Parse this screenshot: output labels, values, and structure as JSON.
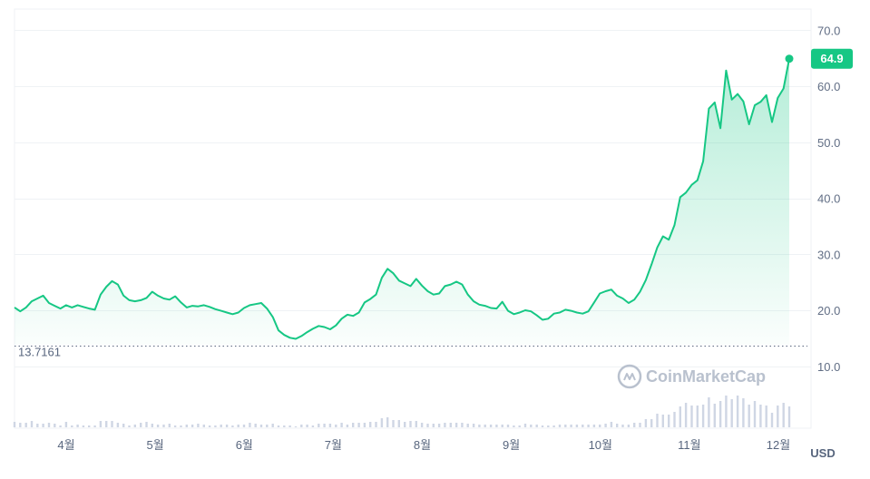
{
  "chart_data": {
    "type": "area",
    "title": "",
    "xlabel": "",
    "ylabel": "",
    "unit": "USD",
    "ylim": [
      0,
      70
    ],
    "y_ticks": [
      10.0,
      20.0,
      30.0,
      40.0,
      50.0,
      60.0,
      70.0
    ],
    "y_tick_labels": [
      "10.0",
      "20.0",
      "30.0",
      "40.0",
      "50.0",
      "60.0",
      "70.0"
    ],
    "x_ticks": [
      "4월",
      "5월",
      "6월",
      "7월",
      "8월",
      "9월",
      "10월",
      "11월",
      "12월"
    ],
    "baseline": {
      "value": 13.7161,
      "label": "13.7161"
    },
    "last_price": {
      "value": 64.9,
      "label": "64.9"
    },
    "watermark": "CoinMarketCap",
    "grid": true,
    "colors": {
      "line": "#16c784",
      "fill": "#16c784",
      "volume": "#cfd6e4",
      "grid": "#eff2f5"
    },
    "series": [
      {
        "values": [
          20.5,
          19.8,
          20.5,
          21.6,
          22.1,
          22.6,
          21.3,
          20.8,
          20.3,
          20.9,
          20.5,
          20.9,
          20.6,
          20.3,
          20.1,
          22.8,
          24.2,
          25.2,
          24.6,
          22.6,
          21.8,
          21.6,
          21.8,
          22.2,
          23.3,
          22.6,
          22.1,
          21.9,
          22.5,
          21.4,
          20.5,
          20.8,
          20.7,
          20.9,
          20.6,
          20.2,
          19.9,
          19.6,
          19.3,
          19.6,
          20.4,
          20.9,
          21.1,
          21.3,
          20.3,
          18.8,
          16.4,
          15.6,
          15.1,
          14.9,
          15.4,
          16.1,
          16.7,
          17.2,
          17.0,
          16.6,
          17.3,
          18.5,
          19.2,
          19.0,
          19.6,
          21.4,
          22.0,
          22.8,
          25.8,
          27.4,
          26.6,
          25.3,
          24.8,
          24.3,
          25.6,
          24.4,
          23.4,
          22.8,
          23.0,
          24.3,
          24.6,
          25.1,
          24.6,
          22.8,
          21.6,
          21.0,
          20.8,
          20.4,
          20.3,
          21.5,
          19.9,
          19.3,
          19.6,
          20.0,
          19.8,
          19.1,
          18.3,
          18.5,
          19.4,
          19.6,
          20.1,
          19.9,
          19.6,
          19.4,
          19.8,
          21.4,
          23.0,
          23.4,
          23.7,
          22.6,
          22.1,
          21.3,
          21.9,
          23.3,
          25.4,
          28.2,
          31.2,
          33.2,
          32.6,
          35.2,
          40.2,
          41.0,
          42.4,
          43.2,
          46.6,
          56.0,
          57.1,
          52.5,
          62.8,
          57.6,
          58.6,
          57.3,
          53.2,
          56.6,
          57.2,
          58.4,
          53.6,
          57.9,
          59.6,
          64.9
        ],
        "volume": [
          16,
          15,
          15,
          17,
          14,
          14,
          15,
          14,
          12,
          16,
          12,
          13,
          12,
          12,
          12,
          17,
          17,
          17,
          15,
          14,
          12,
          13,
          15,
          16,
          14,
          13,
          13,
          14,
          12,
          12,
          13,
          13,
          14,
          13,
          12,
          12,
          13,
          13,
          12,
          13,
          13,
          15,
          14,
          13,
          13,
          14,
          12,
          12,
          12,
          11,
          13,
          13,
          12,
          14,
          14,
          14,
          13,
          15,
          13,
          15,
          15,
          15,
          16,
          16,
          20,
          21,
          18,
          18,
          16,
          17,
          17,
          15,
          14,
          14,
          14,
          15,
          15,
          15,
          15,
          14,
          14,
          13,
          13,
          13,
          13,
          13,
          13,
          12,
          12,
          14,
          13,
          13,
          12,
          12,
          12,
          13,
          13,
          13,
          13,
          13,
          13,
          13,
          13,
          14,
          16,
          14,
          13,
          13,
          15,
          15,
          19,
          19,
          25,
          24,
          24,
          27,
          33,
          37,
          34,
          34,
          35,
          43,
          36,
          39,
          45,
          41,
          45,
          42,
          35,
          39,
          35,
          34,
          26,
          34,
          37,
          33
        ]
      }
    ]
  }
}
